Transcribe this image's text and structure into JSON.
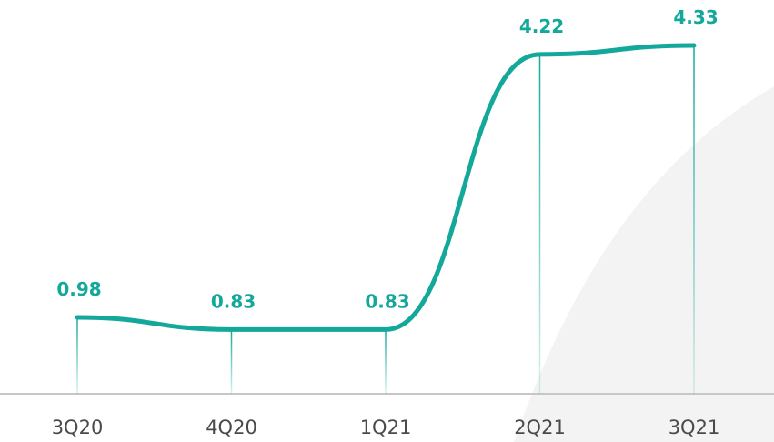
{
  "chart_data": {
    "type": "line",
    "title": "",
    "xlabel": "",
    "ylabel": "",
    "categories": [
      "3Q20",
      "4Q20",
      "1Q21",
      "2Q21",
      "3Q21"
    ],
    "series": [
      {
        "values": [
          0.98,
          0.83,
          0.83,
          4.22,
          4.33
        ],
        "labels": [
          "0.98",
          "0.83",
          "0.83",
          "4.22",
          "4.33"
        ]
      }
    ],
    "ylim": [
      0,
      4.8
    ],
    "grid": false,
    "smooth": true,
    "drop_lines": true
  },
  "colors": {
    "line": "#13a89a",
    "label": "#13a89a",
    "tick_text": "#4a4a4a",
    "axis": "#c7c7c7",
    "background_shape": "#f3f3f3"
  }
}
